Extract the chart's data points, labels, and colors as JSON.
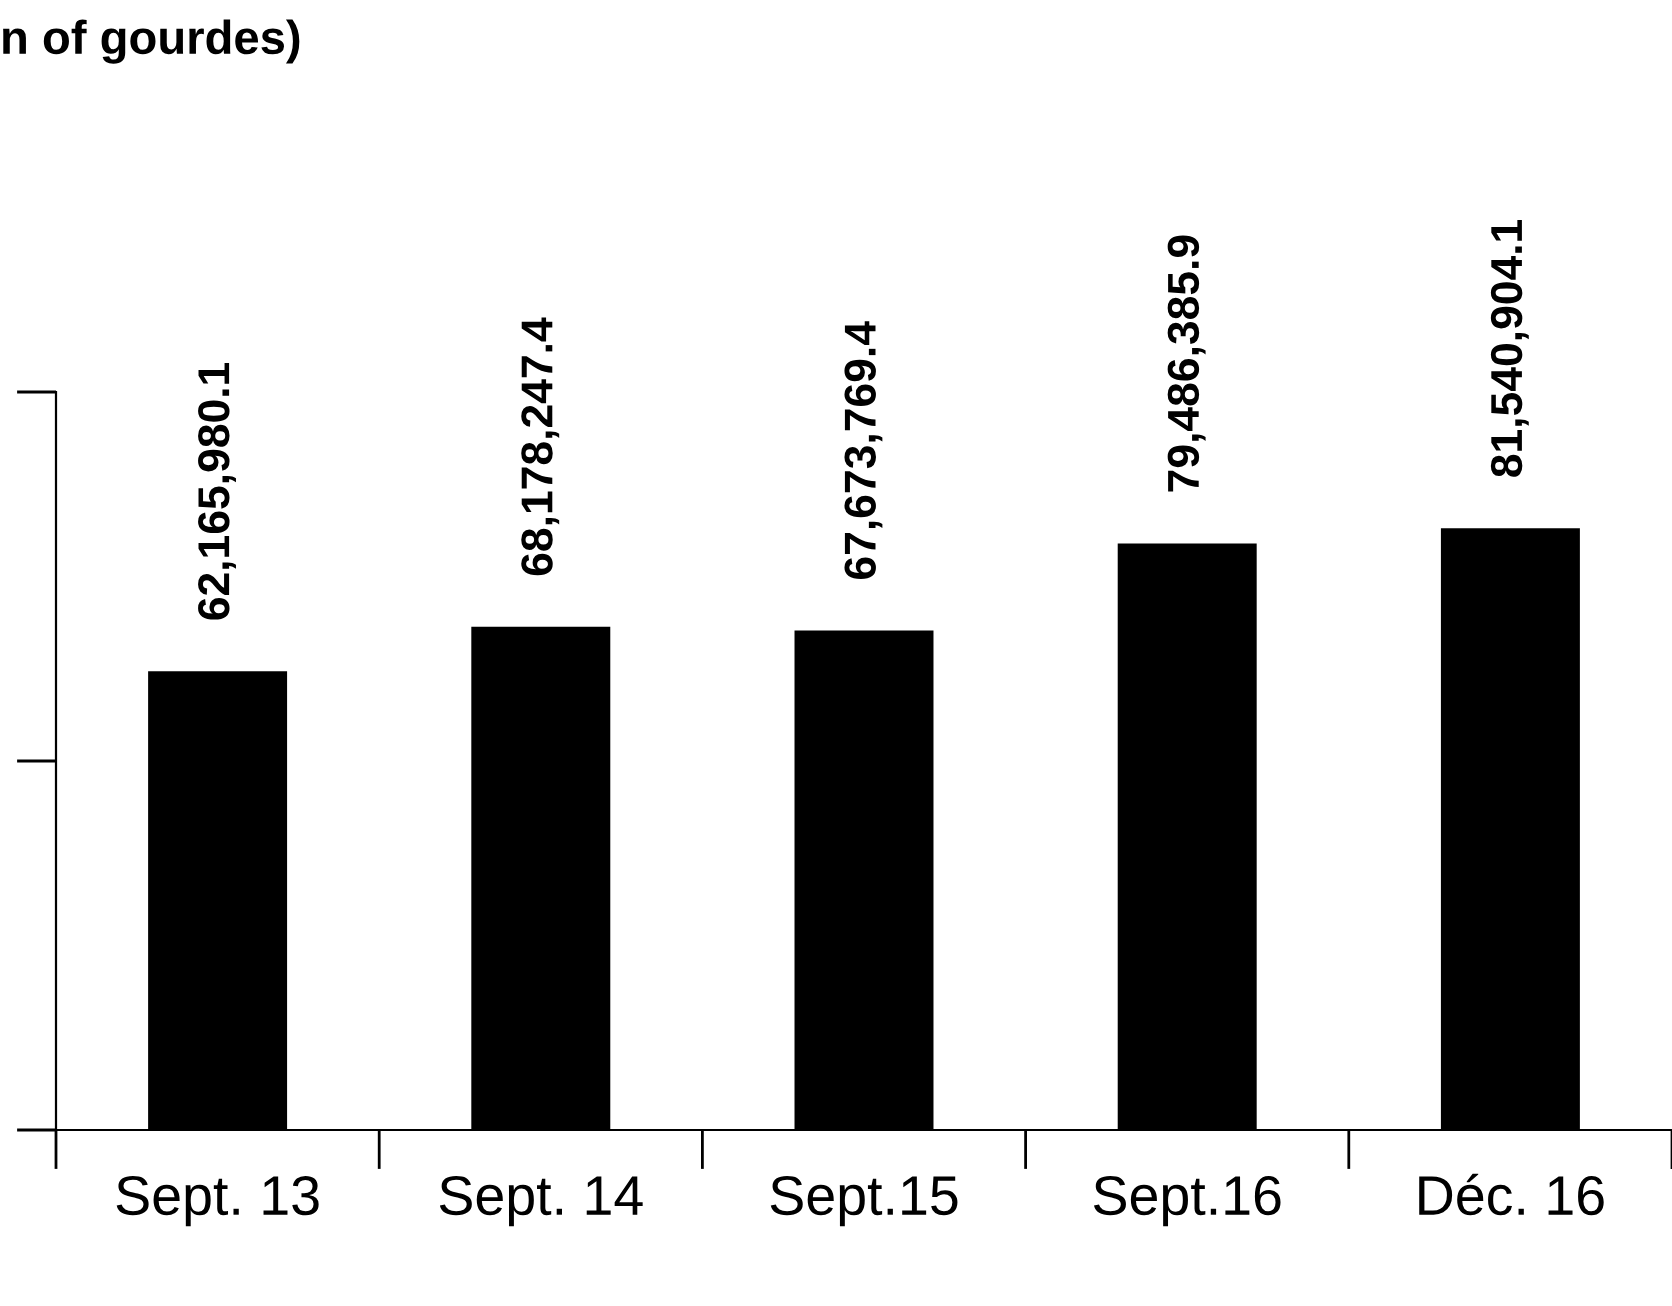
{
  "chart_data": {
    "type": "bar",
    "title": "n of gourdes)",
    "categories": [
      "Sept. 13",
      "Sept. 14",
      "Sept.15",
      "Sept.16",
      "Déc. 16"
    ],
    "values": [
      62165980.1,
      68178247.4,
      67673769.4,
      79486385.9,
      81540904.1
    ],
    "value_labels": [
      "62,165,980.1",
      "68,178,247.4",
      "67,673,769.4",
      "79,486,385.9",
      "81,540,904.1"
    ],
    "color": "#000000",
    "ylim": [
      0,
      100000000
    ],
    "tick_labels": "x",
    "grid": false,
    "legend": false
  }
}
